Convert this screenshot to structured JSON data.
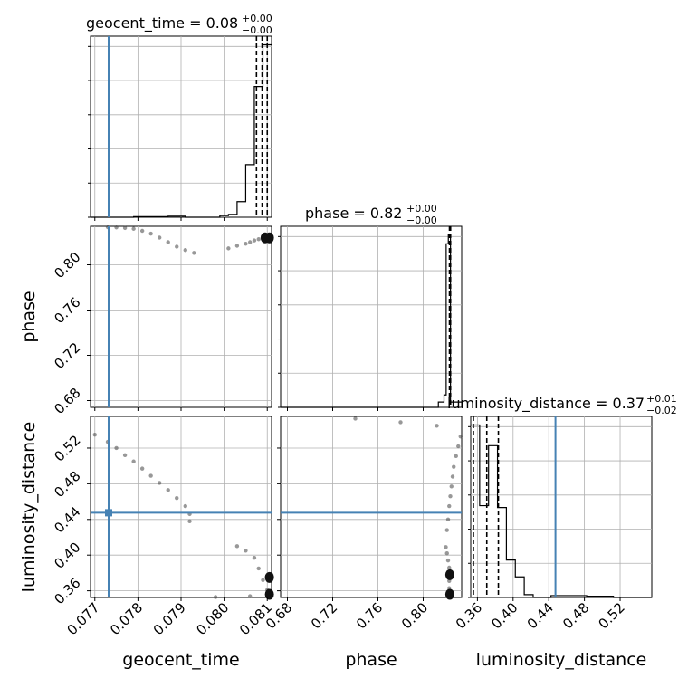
{
  "chart_data": {
    "type": "corner",
    "parameters": [
      "geocent_time",
      "phase",
      "luminosity_distance"
    ],
    "truth_color": "#4682b4",
    "grid": true,
    "titles": [
      {
        "name": "geocent_time",
        "median": "0.08",
        "plus": "+0.00",
        "minus": "−0.00"
      },
      {
        "name": "phase",
        "median": "0.82",
        "plus": "+0.00",
        "minus": "−0.00"
      },
      {
        "name": "luminosity_distance",
        "median": "0.37",
        "plus": "+0.01",
        "minus": "−0.02"
      }
    ],
    "axes": {
      "geocent_time": {
        "range": [
          0.0769,
          0.0811
        ],
        "ticks": [
          "0.077",
          "0.078",
          "0.079",
          "0.080",
          "0.081"
        ],
        "tick_values": [
          0.077,
          0.078,
          0.079,
          0.08,
          0.081
        ]
      },
      "phase": {
        "range": [
          0.674,
          0.834
        ],
        "ticks": [
          "0.68",
          "0.72",
          "0.76",
          "0.80"
        ],
        "tick_values": [
          0.68,
          0.72,
          0.76,
          0.8
        ]
      },
      "luminosity_distance": {
        "range": [
          0.3525,
          0.5555
        ],
        "ticks": [
          "0.36",
          "0.40",
          "0.44",
          "0.48",
          "0.52"
        ],
        "tick_values": [
          0.36,
          0.4,
          0.44,
          0.48,
          0.52
        ]
      }
    },
    "truths": {
      "geocent_time": 0.07732,
      "phase": null,
      "luminosity_distance": 0.4475
    },
    "histograms": {
      "geocent_time": {
        "edges": [
          0.0769,
          0.0771,
          0.0773,
          0.0775,
          0.0777,
          0.0779,
          0.0781,
          0.0783,
          0.0785,
          0.0787,
          0.0789,
          0.0791,
          0.0793,
          0.0795,
          0.0797,
          0.0799,
          0.0801,
          0.0803,
          0.0805,
          0.0807,
          0.0809,
          0.0811
        ],
        "counts": [
          0,
          0,
          0,
          0,
          0,
          0.3,
          0.3,
          0.3,
          0.3,
          0.6,
          0.6,
          0,
          0,
          0,
          0,
          0.9,
          1.6,
          8.6,
          29,
          72,
          95
        ]
      },
      "phase": {
        "edges": [
          0.674,
          0.8134,
          0.8184,
          0.8203,
          0.8222,
          0.8241,
          0.834
        ],
        "counts": [
          0,
          3,
          7,
          92,
          97,
          3
        ]
      },
      "luminosity_distance": {
        "edges": [
          0.3525,
          0.3625,
          0.3725,
          0.3825,
          0.3925,
          0.4025,
          0.4125,
          0.4225,
          0.4325,
          0.4425,
          0.4525,
          0.4625,
          0.4725,
          0.4825,
          0.4925,
          0.5025,
          0.5125,
          0.5225,
          0.5325,
          0.5425,
          0.5555
        ],
        "counts": [
          92,
          49,
          81,
          48,
          20,
          11,
          1.5,
          0,
          0,
          1,
          1,
          1,
          1,
          0.7,
          0.7,
          0.7,
          0,
          0,
          0,
          0
        ]
      }
    },
    "quantiles": {
      "geocent_time": [
        0.08075,
        0.08088,
        0.081
      ],
      "phase": [
        0.8232,
        0.8238,
        0.8242
      ],
      "luminosity_distance": [
        0.3555,
        0.3705,
        0.3835
      ]
    },
    "scatter": {
      "phase_vs_geocent_time": [
        [
          0.0773,
          0.8332
        ],
        [
          0.0775,
          0.833
        ],
        [
          0.0777,
          0.8325
        ],
        [
          0.0779,
          0.8318
        ],
        [
          0.0781,
          0.83
        ],
        [
          0.0783,
          0.8275
        ],
        [
          0.0785,
          0.824
        ],
        [
          0.0787,
          0.82
        ],
        [
          0.0789,
          0.816
        ],
        [
          0.0791,
          0.813
        ],
        [
          0.0793,
          0.8105
        ],
        [
          0.0801,
          0.8145
        ],
        [
          0.0803,
          0.8168
        ],
        [
          0.0805,
          0.8186
        ],
        [
          0.0806,
          0.82
        ],
        [
          0.0807,
          0.8215
        ],
        [
          0.0808,
          0.8226
        ],
        [
          0.0809,
          0.8232
        ],
        [
          0.081,
          0.8236
        ],
        [
          0.0811,
          0.8238
        ]
      ],
      "luminosity_distance_vs_geocent_time": [
        [
          0.077,
          0.535
        ],
        [
          0.0773,
          0.527
        ],
        [
          0.0775,
          0.52
        ],
        [
          0.0777,
          0.512
        ],
        [
          0.0779,
          0.505
        ],
        [
          0.0781,
          0.497
        ],
        [
          0.0783,
          0.489
        ],
        [
          0.0785,
          0.481
        ],
        [
          0.0787,
          0.473
        ],
        [
          0.0789,
          0.464
        ],
        [
          0.0791,
          0.455
        ],
        [
          0.0792,
          0.446
        ],
        [
          0.0792,
          0.438
        ],
        [
          0.0803,
          0.41
        ],
        [
          0.0805,
          0.405
        ],
        [
          0.0807,
          0.397
        ],
        [
          0.0808,
          0.385
        ],
        [
          0.0809,
          0.372
        ],
        [
          0.081,
          0.361
        ],
        [
          0.0806,
          0.354
        ],
        [
          0.0798,
          0.353
        ],
        [
          0.0811,
          0.378
        ]
      ],
      "luminosity_distance_vs_phase": [
        [
          0.74,
          0.553
        ],
        [
          0.78,
          0.549
        ],
        [
          0.812,
          0.545
        ],
        [
          0.833,
          0.533
        ],
        [
          0.831,
          0.522
        ],
        [
          0.829,
          0.511
        ],
        [
          0.827,
          0.499
        ],
        [
          0.826,
          0.488
        ],
        [
          0.825,
          0.477
        ],
        [
          0.824,
          0.466
        ],
        [
          0.823,
          0.455
        ],
        [
          0.822,
          0.44
        ],
        [
          0.821,
          0.428
        ],
        [
          0.82,
          0.409
        ],
        [
          0.821,
          0.402
        ],
        [
          0.822,
          0.394
        ],
        [
          0.823,
          0.386
        ],
        [
          0.823,
          0.379
        ],
        [
          0.823,
          0.371
        ],
        [
          0.823,
          0.363
        ],
        [
          0.823,
          0.356
        ]
      ]
    }
  }
}
